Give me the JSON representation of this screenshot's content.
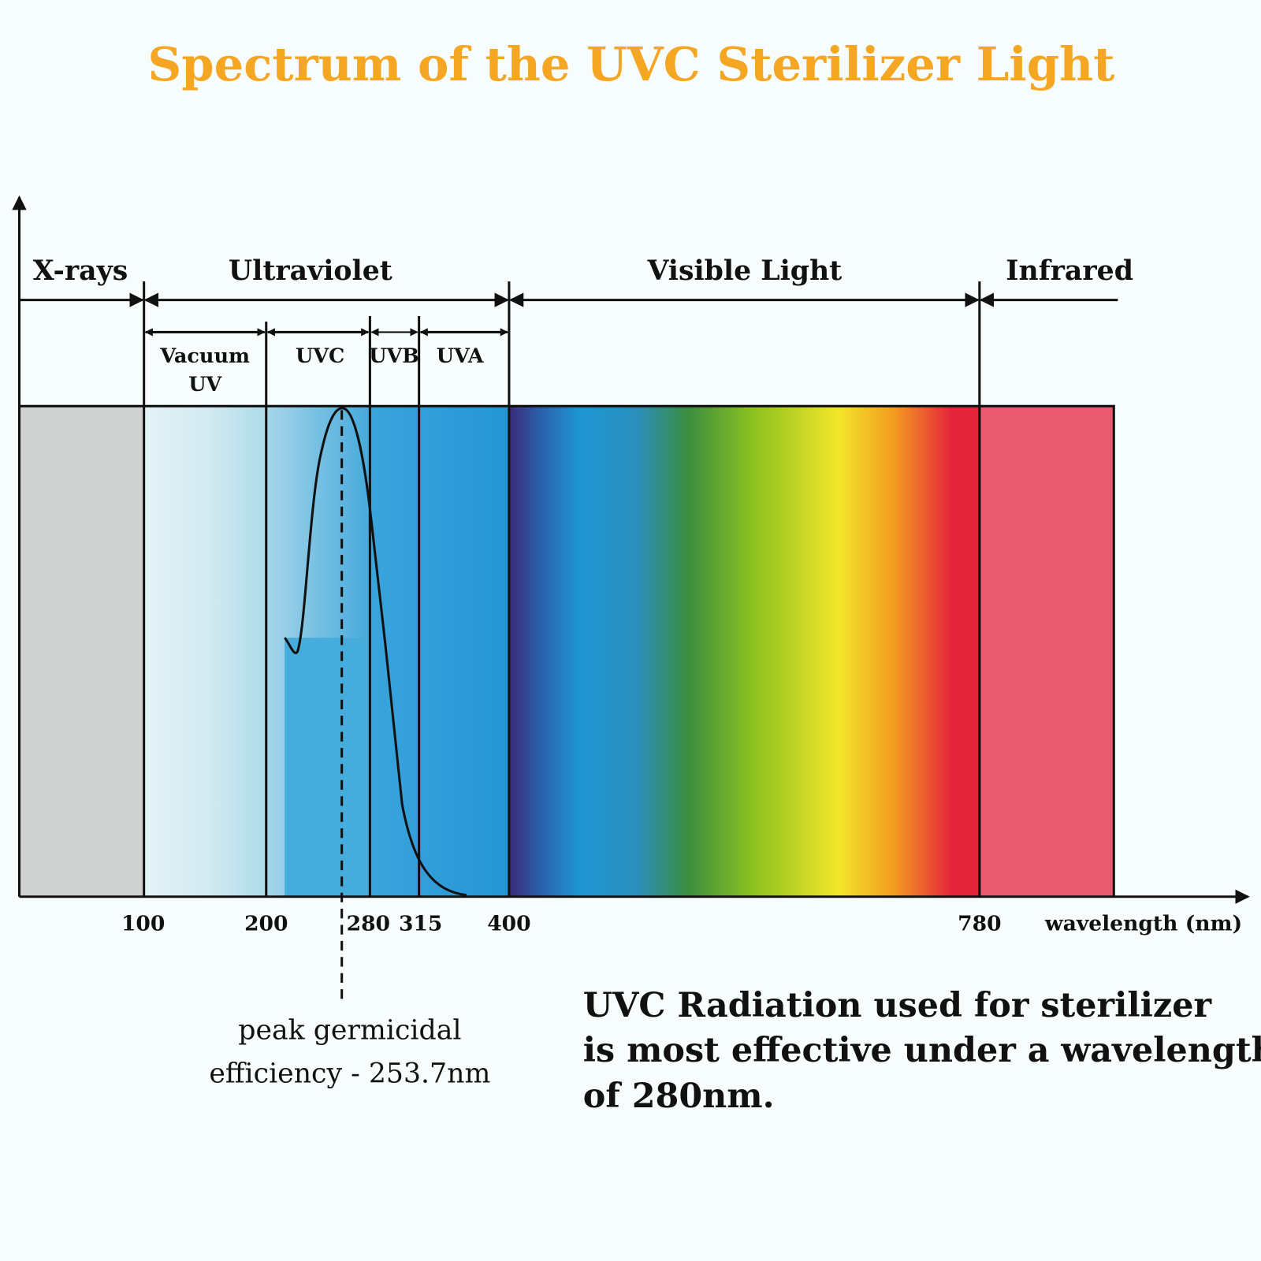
{
  "title": "Spectrum of the UVC Sterilizer Light",
  "bands": [
    {
      "label": "X-rays"
    },
    {
      "label": "Ultraviolet"
    },
    {
      "label": "Visible Light"
    },
    {
      "label": "Infrared"
    }
  ],
  "sub_bands": [
    {
      "label": [
        "Vacuum",
        "UV"
      ]
    },
    {
      "label": [
        "UVC"
      ]
    },
    {
      "label": [
        "UVB"
      ]
    },
    {
      "label": [
        "UVA"
      ]
    }
  ],
  "ticks": [
    "100",
    "200",
    "280",
    "315",
    "400",
    "780"
  ],
  "axis_label": "wavelength (nm)",
  "peak_annotation": [
    "peak germicidal",
    "efficiency - 253.7nm"
  ],
  "note": [
    "UVC Radiation used for sterilizer",
    "is most effective under a wavelength",
    "of 280nm."
  ]
}
